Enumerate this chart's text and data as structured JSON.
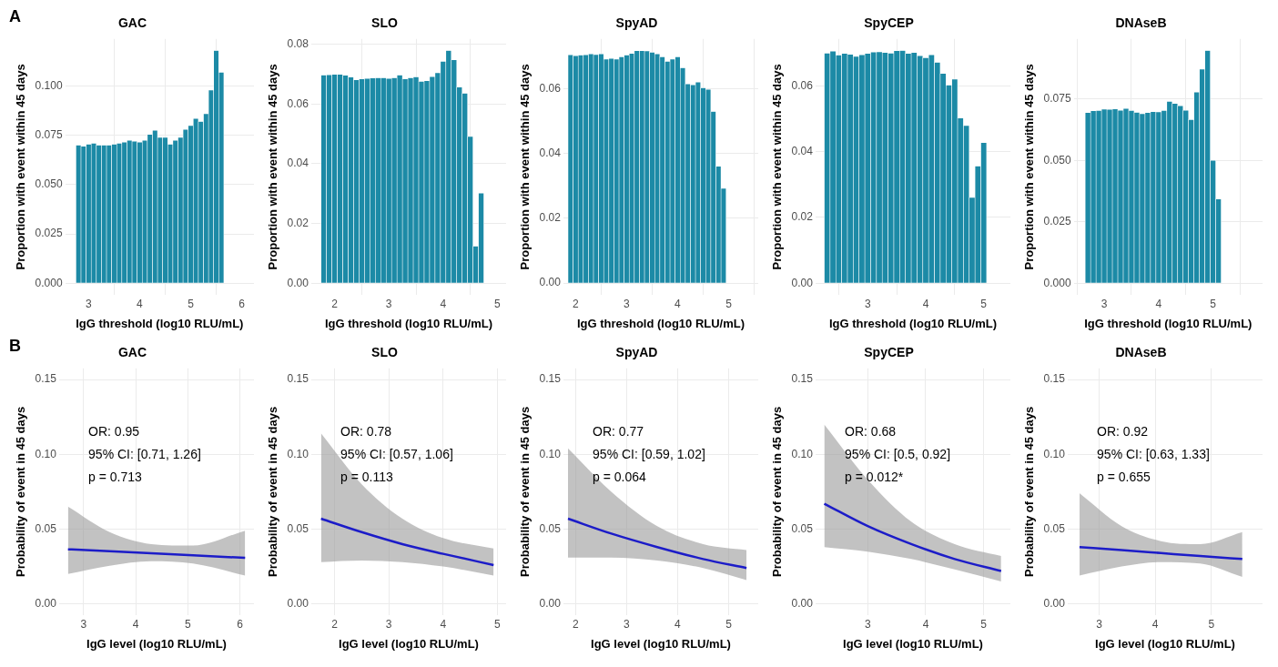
{
  "chart_data": [
    {
      "type": "histogram",
      "title": "GAC",
      "xlabel": "IgG threshold (log10 RLU/mL)",
      "ylabel": "Proportion with event within 45 days",
      "annotations": [
        "A"
      ],
      "color": "#1c8aa6",
      "grid": true,
      "xlim": [
        2.54,
        6.24
      ],
      "xticks": [
        3,
        4,
        5,
        6
      ],
      "ylim": [
        -0.0059,
        0.1239
      ],
      "yticks": [
        {
          "value": 0,
          "label": "0.000"
        },
        {
          "value": 0.025,
          "label": "0.025"
        },
        {
          "value": 0.05,
          "label": "0.050"
        },
        {
          "value": 0.075,
          "label": "0.075"
        },
        {
          "value": 0.1,
          "label": "0.100"
        }
      ],
      "bins": [
        2.75,
        2.85,
        2.95,
        3.05,
        3.15,
        3.25,
        3.35,
        3.45,
        3.55,
        3.65,
        3.75,
        3.85,
        3.95,
        4.05,
        4.15,
        4.25,
        4.35,
        4.45,
        4.55,
        4.65,
        4.75,
        4.85,
        4.95,
        5.05,
        5.15,
        5.25,
        5.35,
        5.45,
        5.55,
        5.65
      ],
      "values": [
        0.07,
        0.0695,
        0.0705,
        0.071,
        0.07,
        0.07,
        0.07,
        0.0705,
        0.071,
        0.0715,
        0.0725,
        0.072,
        0.0715,
        0.0725,
        0.0755,
        0.0775,
        0.074,
        0.074,
        0.0705,
        0.0725,
        0.074,
        0.078,
        0.08,
        0.0835,
        0.082,
        0.086,
        0.098,
        0.118,
        0.107
      ]
    },
    {
      "type": "histogram",
      "title": "SLO",
      "xlabel": "IgG threshold (log10 RLU/mL)",
      "ylabel": "Proportion with event within 45 days",
      "color": "#1c8aa6",
      "grid": true,
      "xlim": [
        1.57,
        5.16
      ],
      "xticks": [
        2,
        3,
        4,
        5
      ],
      "ylim": [
        -0.0039,
        0.0818
      ],
      "yticks": [
        {
          "value": 0,
          "label": "0.00"
        },
        {
          "value": 0.02,
          "label": "0.02"
        },
        {
          "value": 0.04,
          "label": "0.04"
        },
        {
          "value": 0.06,
          "label": "0.06"
        },
        {
          "value": 0.08,
          "label": "0.08"
        }
      ],
      "bins": [
        1.75,
        1.85,
        1.95,
        2.05,
        2.15,
        2.25,
        2.35,
        2.45,
        2.55,
        2.65,
        2.75,
        2.85,
        2.95,
        3.05,
        3.15,
        3.25,
        3.35,
        3.45,
        3.55,
        3.65,
        3.75,
        3.85,
        3.95,
        4.05,
        4.15,
        4.25,
        4.35,
        4.45,
        4.55,
        4.65,
        4.75
      ],
      "values": [
        0.0697,
        0.0698,
        0.0699,
        0.0699,
        0.0696,
        0.069,
        0.0681,
        0.0684,
        0.0686,
        0.0687,
        0.0688,
        0.0688,
        0.0686,
        0.0688,
        0.0697,
        0.0684,
        0.0688,
        0.0691,
        0.0676,
        0.0678,
        0.0692,
        0.0705,
        0.0743,
        0.0779,
        0.0748,
        0.0657,
        0.0636,
        0.0491,
        0.0124,
        0.0302
      ]
    },
    {
      "type": "histogram",
      "title": "SpyAD",
      "xlabel": "IgG threshold (log10 RLU/mL)",
      "ylabel": "Proportion with event within 45 days",
      "color": "#1c8aa6",
      "grid": true,
      "xlim": [
        1.76,
        5.58
      ],
      "xticks": [
        2,
        3,
        4,
        5
      ],
      "ylim": [
        -0.0036,
        0.0754
      ],
      "yticks": [
        {
          "value": 0,
          "label": "0.00"
        },
        {
          "value": 0.02,
          "label": "0.02"
        },
        {
          "value": 0.04,
          "label": "0.04"
        },
        {
          "value": 0.06,
          "label": "0.06"
        }
      ],
      "bins": [
        1.85,
        1.95,
        2.05,
        2.15,
        2.25,
        2.35,
        2.45,
        2.55,
        2.65,
        2.75,
        2.85,
        2.95,
        3.05,
        3.15,
        3.25,
        3.35,
        3.45,
        3.55,
        3.65,
        3.75,
        3.85,
        3.95,
        4.05,
        4.15,
        4.25,
        4.35,
        4.45,
        4.55,
        4.65,
        4.75,
        4.85,
        4.95
      ],
      "values": [
        0.0705,
        0.0702,
        0.0704,
        0.0705,
        0.0708,
        0.0706,
        0.0708,
        0.0692,
        0.0694,
        0.0692,
        0.0699,
        0.0704,
        0.0709,
        0.0718,
        0.0718,
        0.0717,
        0.0713,
        0.0708,
        0.0699,
        0.0685,
        0.0692,
        0.0699,
        0.0665,
        0.0615,
        0.0612,
        0.0621,
        0.0603,
        0.0598,
        0.053,
        0.0361,
        0.0293
      ]
    },
    {
      "type": "histogram",
      "title": "SpyCEP",
      "xlabel": "IgG threshold (log10 RLU/mL)",
      "ylabel": "Proportion with event within 45 days",
      "color": "#1c8aa6",
      "grid": true,
      "xlim": [
        2.1,
        5.46
      ],
      "xticks": [
        3,
        4,
        5
      ],
      "ylim": [
        -0.0035,
        0.0742
      ],
      "yticks": [
        {
          "value": 0,
          "label": "0.00"
        },
        {
          "value": 0.02,
          "label": "0.02"
        },
        {
          "value": 0.04,
          "label": "0.04"
        },
        {
          "value": 0.06,
          "label": "0.06"
        }
      ],
      "bins": [
        2.25,
        2.35,
        2.45,
        2.55,
        2.65,
        2.75,
        2.85,
        2.95,
        3.05,
        3.15,
        3.25,
        3.35,
        3.45,
        3.55,
        3.65,
        3.75,
        3.85,
        3.95,
        4.05,
        4.15,
        4.25,
        4.35,
        4.45,
        4.55,
        4.65,
        4.75,
        4.85,
        4.95,
        5.05
      ],
      "values": [
        0.0699,
        0.0705,
        0.0693,
        0.0698,
        0.0695,
        0.0689,
        0.0694,
        0.0698,
        0.0702,
        0.0703,
        0.0701,
        0.0699,
        0.0706,
        0.0707,
        0.0698,
        0.0701,
        0.0691,
        0.0685,
        0.0694,
        0.0671,
        0.0637,
        0.0602,
        0.062,
        0.0502,
        0.0479,
        0.0261,
        0.0356,
        0.0427
      ]
    },
    {
      "type": "histogram",
      "title": "DNAseB",
      "xlabel": "IgG threshold (log10 RLU/mL)",
      "ylabel": "Proportion with event within 45 days",
      "color": "#1c8aa6",
      "grid": true,
      "xlim": [
        2.44,
        5.91
      ],
      "xticks": [
        3,
        4,
        5
      ],
      "ylim": [
        -0.0047,
        0.0994
      ],
      "yticks": [
        {
          "value": 0,
          "label": "0.000"
        },
        {
          "value": 0.025,
          "label": "0.025"
        },
        {
          "value": 0.05,
          "label": "0.050"
        },
        {
          "value": 0.075,
          "label": "0.075"
        }
      ],
      "bins": [
        2.65,
        2.75,
        2.85,
        2.95,
        3.05,
        3.15,
        3.25,
        3.35,
        3.45,
        3.55,
        3.65,
        3.75,
        3.85,
        3.95,
        4.05,
        4.15,
        4.25,
        4.35,
        4.45,
        4.55,
        4.65,
        4.75,
        4.85,
        4.95,
        5.05,
        5.15
      ],
      "values": [
        0.0694,
        0.0702,
        0.0703,
        0.0708,
        0.0707,
        0.0709,
        0.0704,
        0.0711,
        0.0703,
        0.0695,
        0.069,
        0.0694,
        0.0698,
        0.0697,
        0.0703,
        0.074,
        0.0731,
        0.0722,
        0.0704,
        0.0666,
        0.0778,
        0.0871,
        0.0947,
        0.05,
        0.0343
      ]
    },
    {
      "type": "line",
      "title": "GAC",
      "xlabel": "IgG level (log10 RLU/mL)",
      "ylabel": "Probability of event in 45 days",
      "annotations": [
        "B",
        "OR: 0.95",
        "95% CI: [0.71, 1.26]",
        "p = 0.713"
      ],
      "grid": true,
      "xlim": [
        2.53,
        6.27
      ],
      "xticks": [
        3,
        4,
        5,
        6
      ],
      "ylim": [
        -0.0075,
        0.1575
      ],
      "yticks": [
        {
          "value": 0,
          "label": "0.00"
        },
        {
          "value": 0.05,
          "label": "0.05"
        },
        {
          "value": 0.1,
          "label": "0.10"
        },
        {
          "value": 0.15,
          "label": "0.15"
        }
      ],
      "x": [
        2.7,
        3.5,
        4.3,
        5.1,
        6.1
      ],
      "series": [
        {
          "color": "#1c1cc8",
          "values": [
            0.0365,
            0.0352,
            0.0338,
            0.0325,
            0.0308
          ],
          "lower": [
            0.02,
            0.0255,
            0.0285,
            0.027,
            0.019
          ],
          "upper": [
            0.065,
            0.048,
            0.04,
            0.039,
            0.049
          ]
        }
      ]
    },
    {
      "type": "line",
      "title": "SLO",
      "xlabel": "IgG level (log10 RLU/mL)",
      "ylabel": "Probability of event in 45 days",
      "annotations": [
        "OR: 0.78",
        "95% CI: [0.57, 1.06]",
        "p = 0.113"
      ],
      "grid": true,
      "xlim": [
        1.57,
        5.16
      ],
      "xticks": [
        2,
        3,
        4,
        5
      ],
      "ylim": [
        -0.0075,
        0.1575
      ],
      "yticks": [
        {
          "value": 0,
          "label": "0.00"
        },
        {
          "value": 0.05,
          "label": "0.05"
        },
        {
          "value": 0.1,
          "label": "0.10"
        },
        {
          "value": 0.15,
          "label": "0.15"
        }
      ],
      "x": [
        1.75,
        2.5,
        3.25,
        4.0,
        4.93
      ],
      "series": [
        {
          "color": "#1c1cc8",
          "values": [
            0.057,
            0.048,
            0.04,
            0.0335,
            0.026
          ],
          "lower": [
            0.028,
            0.029,
            0.028,
            0.025,
            0.019
          ],
          "upper": [
            0.114,
            0.08,
            0.057,
            0.044,
            0.037
          ]
        }
      ]
    },
    {
      "type": "line",
      "title": "SpyAD",
      "xlabel": "IgG level (log10 RLU/mL)",
      "ylabel": "Probability of event in 45 days",
      "annotations": [
        "OR: 0.77",
        "95% CI: [0.59, 1.02]",
        "p = 0.064"
      ],
      "grid": true,
      "xlim": [
        1.76,
        5.58
      ],
      "xticks": [
        2,
        3,
        4,
        5
      ],
      "ylim": [
        -0.0075,
        0.1575
      ],
      "yticks": [
        {
          "value": 0,
          "label": "0.00"
        },
        {
          "value": 0.05,
          "label": "0.05"
        },
        {
          "value": 0.1,
          "label": "0.10"
        },
        {
          "value": 0.15,
          "label": "0.15"
        }
      ],
      "x": [
        1.85,
        2.7,
        3.6,
        4.5,
        5.35
      ],
      "series": [
        {
          "color": "#1c1cc8",
          "values": [
            0.057,
            0.047,
            0.038,
            0.03,
            0.024
          ],
          "lower": [
            0.031,
            0.031,
            0.029,
            0.024,
            0.016
          ],
          "upper": [
            0.104,
            0.075,
            0.052,
            0.04,
            0.036
          ]
        }
      ]
    },
    {
      "type": "line",
      "title": "SpyCEP",
      "xlabel": "IgG level (log10 RLU/mL)",
      "ylabel": "Probability of event in 45 days",
      "annotations": [
        "OR: 0.68",
        "95% CI: [0.5, 0.92]",
        "p = 0.012*"
      ],
      "grid": true,
      "xlim": [
        2.1,
        5.46
      ],
      "xticks": [
        3,
        4,
        5
      ],
      "ylim": [
        -0.0075,
        0.1575
      ],
      "yticks": [
        {
          "value": 0,
          "label": "0.00"
        },
        {
          "value": 0.05,
          "label": "0.05"
        },
        {
          "value": 0.1,
          "label": "0.10"
        },
        {
          "value": 0.15,
          "label": "0.15"
        }
      ],
      "x": [
        2.25,
        3.0,
        3.75,
        4.5,
        5.3
      ],
      "series": [
        {
          "color": "#1c1cc8",
          "values": [
            0.067,
            0.052,
            0.04,
            0.03,
            0.022
          ],
          "lower": [
            0.038,
            0.035,
            0.03,
            0.023,
            0.015
          ],
          "upper": [
            0.12,
            0.083,
            0.055,
            0.04,
            0.032
          ]
        }
      ]
    },
    {
      "type": "line",
      "title": "DNAseB",
      "xlabel": "IgG level (log10 RLU/mL)",
      "ylabel": "Probability of event in 45 days",
      "annotations": [
        "OR: 0.92",
        "95% CI: [0.63, 1.33]",
        "p = 0.655"
      ],
      "grid": true,
      "xlim": [
        2.44,
        5.91
      ],
      "xticks": [
        3,
        4,
        5
      ],
      "ylim": [
        -0.0075,
        0.1575
      ],
      "yticks": [
        {
          "value": 0,
          "label": "0.00"
        },
        {
          "value": 0.05,
          "label": "0.05"
        },
        {
          "value": 0.1,
          "label": "0.10"
        },
        {
          "value": 0.15,
          "label": "0.15"
        }
      ],
      "x": [
        2.65,
        3.4,
        4.1,
        4.8,
        5.55
      ],
      "series": [
        {
          "color": "#1c1cc8",
          "values": [
            0.038,
            0.036,
            0.034,
            0.032,
            0.03
          ],
          "lower": [
            0.019,
            0.025,
            0.028,
            0.027,
            0.018
          ],
          "upper": [
            0.074,
            0.052,
            0.042,
            0.04,
            0.048
          ]
        }
      ]
    }
  ]
}
